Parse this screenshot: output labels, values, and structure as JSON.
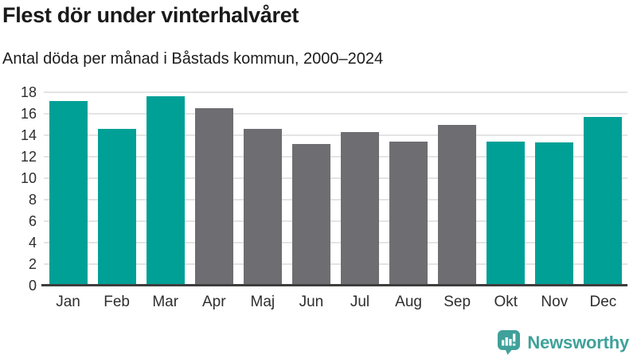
{
  "header": {
    "title": "Flest dör under vinterhalvåret",
    "subtitle": "Antal döda per månad i Båstads kommun, 2000–2024"
  },
  "chart_data": {
    "type": "bar",
    "title": "Flest dör under vinterhalvåret",
    "subtitle": "Antal döda per månad i Båstads kommun, 2000–2024",
    "categories": [
      "Jan",
      "Feb",
      "Mar",
      "Apr",
      "Maj",
      "Jun",
      "Jul",
      "Aug",
      "Sep",
      "Okt",
      "Nov",
      "Dec"
    ],
    "values": [
      17.2,
      14.6,
      17.6,
      16.5,
      14.6,
      13.2,
      14.3,
      13.4,
      15.0,
      13.4,
      13.3,
      15.7
    ],
    "winter_highlight": [
      true,
      true,
      true,
      false,
      false,
      false,
      false,
      false,
      false,
      true,
      true,
      true
    ],
    "xlabel": "",
    "ylabel": "",
    "ylim": [
      0,
      18
    ],
    "yticks": [
      0,
      2,
      4,
      6,
      8,
      10,
      12,
      14,
      16,
      18
    ],
    "grid": "horizontal",
    "legend": "none",
    "colors": {
      "winter_bar": "#00a096",
      "summer_bar": "#6e6d72",
      "gridline": "#e4e4e4",
      "axis_line": "#3d3d3d",
      "text": "#1a1a1a"
    }
  },
  "footer": {
    "brand": "Newsworthy",
    "logo_icon": "newsworthy-speech-bubble-chart-icon",
    "brand_color": "#3fa19a"
  }
}
